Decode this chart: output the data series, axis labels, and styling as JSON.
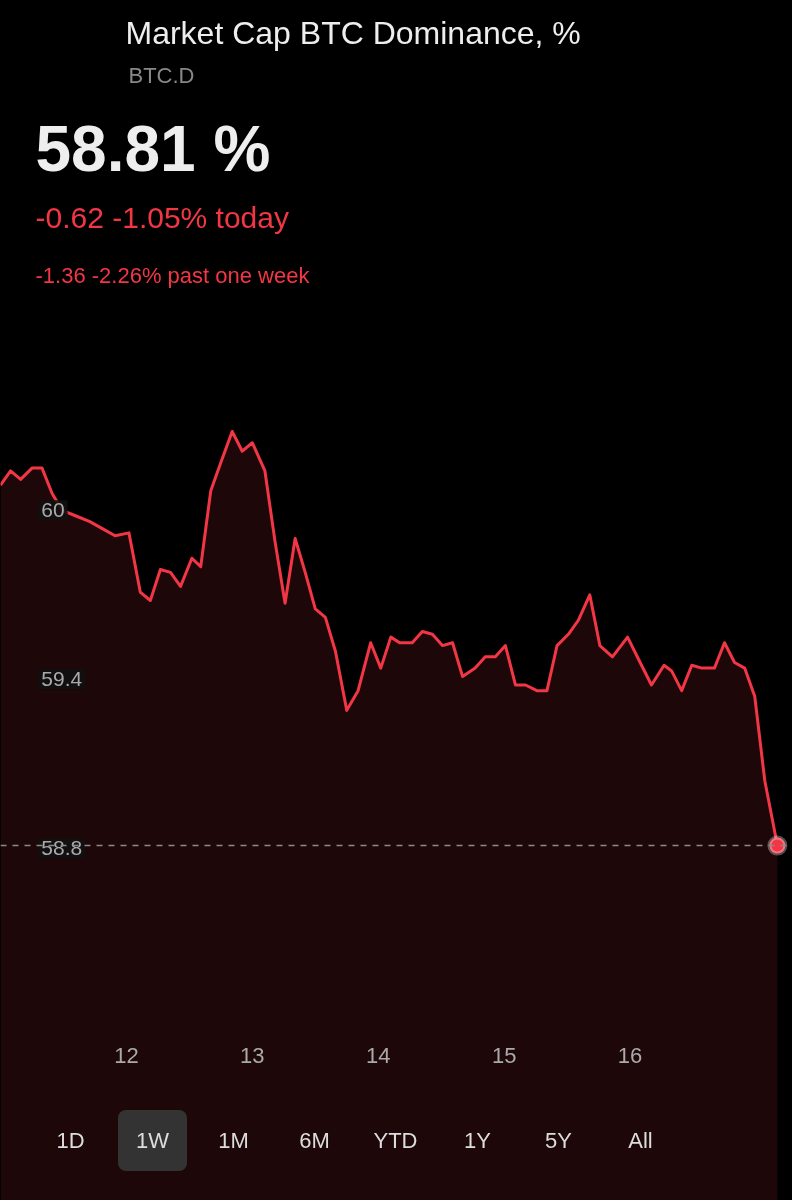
{
  "chart_data": {
    "type": "area",
    "title": "Market Cap BTC Dominance, %",
    "subtitle": "BTC.D",
    "annotations": [
      "58.81 %",
      "-0.62  -1.05%  today",
      "-1.36  -2.26%  past one week",
      "1D",
      "1W",
      "1M",
      "6M",
      "YTD",
      "1Y",
      "5Y",
      "All"
    ],
    "x": [
      11.0,
      11.08,
      11.16,
      11.25,
      11.33,
      11.41,
      11.49,
      11.6,
      11.71,
      11.83,
      11.91,
      12.02,
      12.11,
      12.19,
      12.27,
      12.35,
      12.43,
      12.52,
      12.59,
      12.67,
      12.75,
      12.84,
      12.92,
      13.0,
      13.1,
      13.18,
      13.26,
      13.34,
      13.42,
      13.5,
      13.58,
      13.66,
      13.75,
      13.84,
      13.94,
      14.02,
      14.1,
      14.17,
      14.27,
      14.35,
      14.43,
      14.51,
      14.59,
      14.67,
      14.77,
      14.85,
      14.93,
      15.01,
      15.09,
      15.17,
      15.26,
      15.34,
      15.42,
      15.51,
      15.59,
      15.68,
      15.76,
      15.86,
      15.98,
      16.08,
      16.17,
      16.27,
      16.33,
      16.41,
      16.49,
      16.57,
      16.67,
      16.75,
      16.83,
      16.91,
      16.99,
      17.07,
      17.17
    ],
    "series": [
      {
        "color": "#f23645",
        "values": [
          60.09,
          60.14,
          60.11,
          60.15,
          60.15,
          60.06,
          60.0,
          59.98,
          59.96,
          59.93,
          59.91,
          59.92,
          59.71,
          59.68,
          59.79,
          59.78,
          59.73,
          59.83,
          59.8,
          60.07,
          60.17,
          60.28,
          60.21,
          60.24,
          60.14,
          59.89,
          59.67,
          59.9,
          59.78,
          59.65,
          59.62,
          59.5,
          59.29,
          59.36,
          59.53,
          59.44,
          59.55,
          59.53,
          59.53,
          59.57,
          59.56,
          59.52,
          59.53,
          59.41,
          59.44,
          59.48,
          59.48,
          59.52,
          59.38,
          59.38,
          59.36,
          59.36,
          59.52,
          59.56,
          59.61,
          59.7,
          59.52,
          59.48,
          59.55,
          59.46,
          59.38,
          59.45,
          59.43,
          59.36,
          59.45,
          59.44,
          59.44,
          59.53,
          59.46,
          59.44,
          59.34,
          59.04,
          58.81
        ]
      }
    ],
    "xlim": [
      11,
      17.29
    ],
    "xticks": [
      12,
      13,
      14,
      15,
      16
    ],
    "ylim": [
      57.55,
      61.81
    ],
    "yticks": [
      60,
      59.4,
      58.8
    ],
    "ref_lines": [
      {
        "axis": "y",
        "value": 58.81,
        "line_style": "dashed",
        "color": "#8a8a8a"
      }
    ],
    "grid": false
  }
}
